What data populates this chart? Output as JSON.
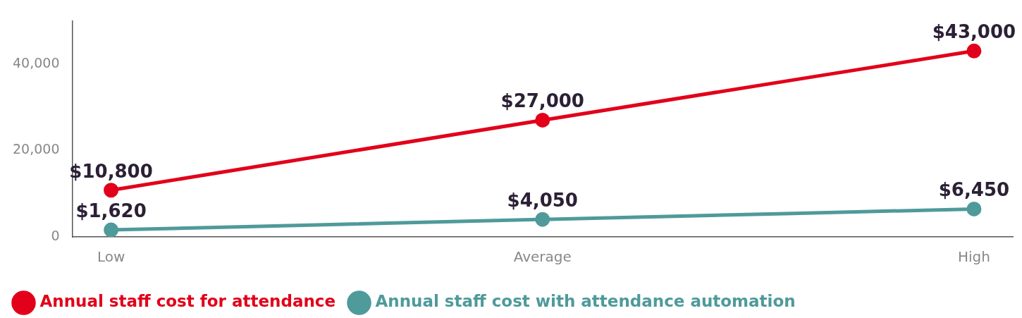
{
  "chart_data": {
    "type": "line",
    "categories": [
      "Low",
      "Average",
      "High"
    ],
    "series": [
      {
        "name": "Annual staff cost for attendance",
        "color": "#e2001a",
        "values": [
          10800,
          27000,
          43000
        ],
        "value_labels": [
          "$10,800",
          "$27,000",
          "$43,000"
        ]
      },
      {
        "name": "Annual staff cost with attendance automation",
        "color": "#4f9a9b",
        "values": [
          1620,
          4050,
          6450
        ],
        "value_labels": [
          "$1,620",
          "$4,050",
          "$6,450"
        ]
      }
    ],
    "ylim": [
      0,
      50000
    ],
    "yticks": [
      0,
      {
        "value": 20000,
        "label": "20,000"
      },
      {
        "value": 40000,
        "label": "40,000"
      }
    ],
    "grid": false,
    "legend": "bottom",
    "marker": "circle",
    "line_style": "solid"
  }
}
